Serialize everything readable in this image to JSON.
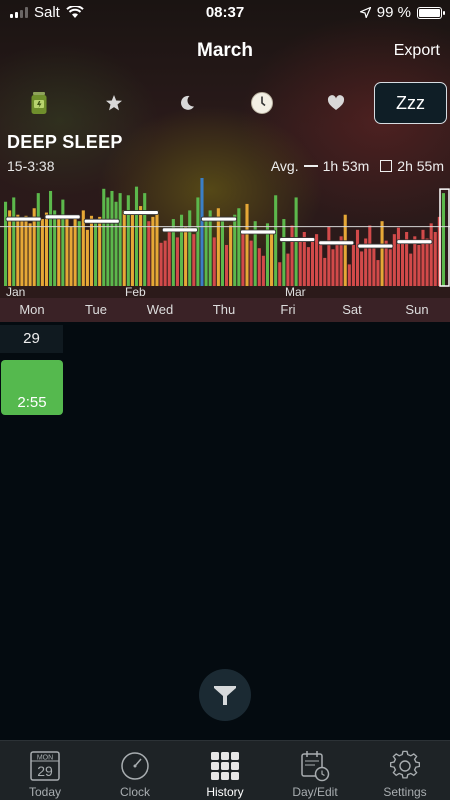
{
  "status_bar": {
    "carrier": "Salt",
    "time": "08:37",
    "battery": "99 %"
  },
  "header": {
    "title": "March",
    "export_label": "Export"
  },
  "metric_tabs": {
    "selected_label": "Zzz"
  },
  "metric": {
    "title": "DEEP SLEEP",
    "range": "15-3:38",
    "avg_label": "Avg.",
    "avg_value": "1h 53m",
    "avg_alt_value": "2h 55m"
  },
  "chart_data": {
    "type": "bar",
    "month_labels": [
      "Jan",
      "Feb",
      "Mar"
    ],
    "weekday_labels": [
      "Mon",
      "Tue",
      "Wed",
      "Thu",
      "Fri",
      "Sat",
      "Sun"
    ],
    "colors": {
      "green": "#5cb84c",
      "amber": "#e6a836",
      "red": "#d24a4a",
      "blue": "#3a7fc6"
    },
    "values": [
      {
        "v": 0.78,
        "c": "green"
      },
      {
        "v": 0.7,
        "c": "amber"
      },
      {
        "v": 0.82,
        "c": "green"
      },
      {
        "v": 0.66,
        "c": "amber"
      },
      {
        "v": 0.6,
        "c": "amber"
      },
      {
        "v": 0.65,
        "c": "amber"
      },
      {
        "v": 0.58,
        "c": "amber"
      },
      {
        "v": 0.72,
        "c": "amber"
      },
      {
        "v": 0.86,
        "c": "green"
      },
      {
        "v": 0.62,
        "c": "amber"
      },
      {
        "v": 0.68,
        "c": "amber"
      },
      {
        "v": 0.88,
        "c": "green"
      },
      {
        "v": 0.7,
        "c": "green"
      },
      {
        "v": 0.62,
        "c": "amber"
      },
      {
        "v": 0.8,
        "c": "green"
      },
      {
        "v": 0.66,
        "c": "amber"
      },
      {
        "v": 0.55,
        "c": "amber"
      },
      {
        "v": 0.62,
        "c": "amber"
      },
      {
        "v": 0.6,
        "c": "green"
      },
      {
        "v": 0.7,
        "c": "amber"
      },
      {
        "v": 0.52,
        "c": "amber"
      },
      {
        "v": 0.65,
        "c": "amber"
      },
      {
        "v": 0.58,
        "c": "green"
      },
      {
        "v": 0.64,
        "c": "amber"
      },
      {
        "v": 0.9,
        "c": "green"
      },
      {
        "v": 0.82,
        "c": "green"
      },
      {
        "v": 0.88,
        "c": "green"
      },
      {
        "v": 0.78,
        "c": "green"
      },
      {
        "v": 0.86,
        "c": "green"
      },
      {
        "v": 0.7,
        "c": "amber"
      },
      {
        "v": 0.84,
        "c": "green"
      },
      {
        "v": 0.68,
        "c": "amber"
      },
      {
        "v": 0.92,
        "c": "green"
      },
      {
        "v": 0.74,
        "c": "amber"
      },
      {
        "v": 0.86,
        "c": "green"
      },
      {
        "v": 0.6,
        "c": "red"
      },
      {
        "v": 0.64,
        "c": "amber"
      },
      {
        "v": 0.7,
        "c": "amber"
      },
      {
        "v": 0.4,
        "c": "red"
      },
      {
        "v": 0.42,
        "c": "red"
      },
      {
        "v": 0.5,
        "c": "red"
      },
      {
        "v": 0.62,
        "c": "green"
      },
      {
        "v": 0.45,
        "c": "red"
      },
      {
        "v": 0.66,
        "c": "green"
      },
      {
        "v": 0.55,
        "c": "amber"
      },
      {
        "v": 0.7,
        "c": "green"
      },
      {
        "v": 0.48,
        "c": "red"
      },
      {
        "v": 0.82,
        "c": "green"
      },
      {
        "v": 1.0,
        "c": "blue"
      },
      {
        "v": 0.62,
        "c": "green"
      },
      {
        "v": 0.7,
        "c": "green"
      },
      {
        "v": 0.45,
        "c": "red"
      },
      {
        "v": 0.72,
        "c": "amber"
      },
      {
        "v": 0.6,
        "c": "green"
      },
      {
        "v": 0.38,
        "c": "red"
      },
      {
        "v": 0.56,
        "c": "amber"
      },
      {
        "v": 0.66,
        "c": "green"
      },
      {
        "v": 0.72,
        "c": "green"
      },
      {
        "v": 0.5,
        "c": "red"
      },
      {
        "v": 0.76,
        "c": "amber"
      },
      {
        "v": 0.42,
        "c": "red"
      },
      {
        "v": 0.6,
        "c": "green"
      },
      {
        "v": 0.35,
        "c": "red"
      },
      {
        "v": 0.28,
        "c": "red"
      },
      {
        "v": 0.58,
        "c": "green"
      },
      {
        "v": 0.48,
        "c": "amber"
      },
      {
        "v": 0.84,
        "c": "green"
      },
      {
        "v": 0.22,
        "c": "red"
      },
      {
        "v": 0.62,
        "c": "green"
      },
      {
        "v": 0.3,
        "c": "red"
      },
      {
        "v": 0.56,
        "c": "red"
      },
      {
        "v": 0.82,
        "c": "green"
      },
      {
        "v": 0.42,
        "c": "red"
      },
      {
        "v": 0.5,
        "c": "red"
      },
      {
        "v": 0.36,
        "c": "red"
      },
      {
        "v": 0.44,
        "c": "red"
      },
      {
        "v": 0.48,
        "c": "red"
      },
      {
        "v": 0.38,
        "c": "red"
      },
      {
        "v": 0.26,
        "c": "red"
      },
      {
        "v": 0.55,
        "c": "red"
      },
      {
        "v": 0.34,
        "c": "red"
      },
      {
        "v": 0.4,
        "c": "red"
      },
      {
        "v": 0.46,
        "c": "red"
      },
      {
        "v": 0.66,
        "c": "amber"
      },
      {
        "v": 0.2,
        "c": "red"
      },
      {
        "v": 0.38,
        "c": "red"
      },
      {
        "v": 0.52,
        "c": "red"
      },
      {
        "v": 0.32,
        "c": "red"
      },
      {
        "v": 0.44,
        "c": "red"
      },
      {
        "v": 0.56,
        "c": "red"
      },
      {
        "v": 0.36,
        "c": "red"
      },
      {
        "v": 0.24,
        "c": "red"
      },
      {
        "v": 0.6,
        "c": "amber"
      },
      {
        "v": 0.42,
        "c": "red"
      },
      {
        "v": 0.34,
        "c": "red"
      },
      {
        "v": 0.48,
        "c": "red"
      },
      {
        "v": 0.54,
        "c": "red"
      },
      {
        "v": 0.4,
        "c": "red"
      },
      {
        "v": 0.5,
        "c": "red"
      },
      {
        "v": 0.3,
        "c": "red"
      },
      {
        "v": 0.46,
        "c": "red"
      },
      {
        "v": 0.38,
        "c": "red"
      },
      {
        "v": 0.52,
        "c": "red"
      },
      {
        "v": 0.44,
        "c": "red"
      },
      {
        "v": 0.58,
        "c": "red"
      },
      {
        "v": 0.5,
        "c": "red"
      },
      {
        "v": 0.64,
        "c": "red"
      },
      {
        "v": 0.86,
        "c": "green"
      }
    ],
    "weekly_averages": [
      0.62,
      0.64,
      0.6,
      0.68,
      0.52,
      0.62,
      0.5,
      0.43,
      0.4,
      0.37,
      0.41
    ],
    "overall_average": 0.55
  },
  "day_cell": {
    "date": "29",
    "value": "2:55"
  },
  "tabbar": {
    "today_day": "MON",
    "today_date": "29",
    "items": [
      "Today",
      "Clock",
      "History",
      "Day/Edit",
      "Settings"
    ]
  }
}
